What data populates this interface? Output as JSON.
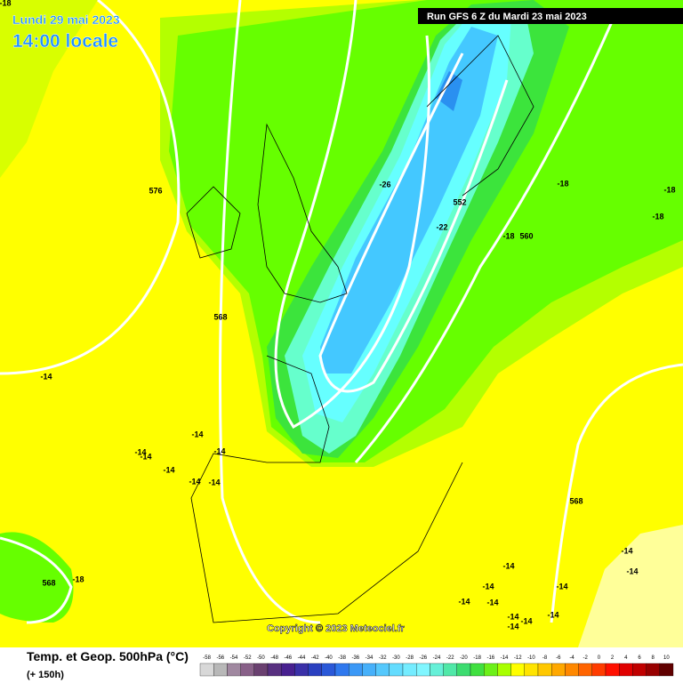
{
  "header": {
    "date": "Lundi 29 mai 2023",
    "time": "14:00 locale",
    "run": "Run GFS 6 Z du Mardi 23 mai 2023"
  },
  "copyright": "Copyright © 2023 Meteociel.fr",
  "footer": {
    "title": "Temp. et Geop. 500hPa (°C)",
    "lead": "(+ 150h)"
  },
  "legend": {
    "ticks": [
      -58,
      -56,
      -54,
      -52,
      -50,
      -48,
      -46,
      -44,
      -42,
      -40,
      -38,
      -36,
      -34,
      -32,
      -30,
      -28,
      -26,
      -24,
      -22,
      -20,
      -18,
      -16,
      -14,
      -12,
      -10,
      -8,
      -6,
      -4,
      -2,
      0,
      2,
      4,
      6,
      8,
      10
    ],
    "colors": [
      "#d8d8d8",
      "#b8b8b8",
      "#a088a0",
      "#886088",
      "#6a4070",
      "#583080",
      "#482090",
      "#3a30a8",
      "#2a40c0",
      "#2a58d8",
      "#2f78ee",
      "#3b98f6",
      "#46b0fa",
      "#55c8fc",
      "#64dcfe",
      "#74ecff",
      "#80f6ff",
      "#66f0d8",
      "#50e8a8",
      "#3cdc70",
      "#40e040",
      "#6cf018",
      "#a8ff00",
      "#ffff00",
      "#ffe400",
      "#ffc800",
      "#ffa800",
      "#ff8800",
      "#ff6400",
      "#ff3c00",
      "#ff1000",
      "#e00000",
      "#c00000",
      "#980000",
      "#600000"
    ]
  },
  "map_labels": [
    "-18",
    "576",
    "568",
    "-14",
    "-26",
    "552",
    "-22",
    "-18",
    "-18",
    "-18",
    "-18",
    "560",
    "-14",
    "-14",
    "-14",
    "-14",
    "-14",
    "-14",
    "-14",
    "568",
    "-14",
    "-14",
    "-14",
    "-14",
    "-14",
    "-14",
    "-14",
    "-14",
    "-14",
    "-14",
    "-14",
    "568",
    "-18"
  ]
}
